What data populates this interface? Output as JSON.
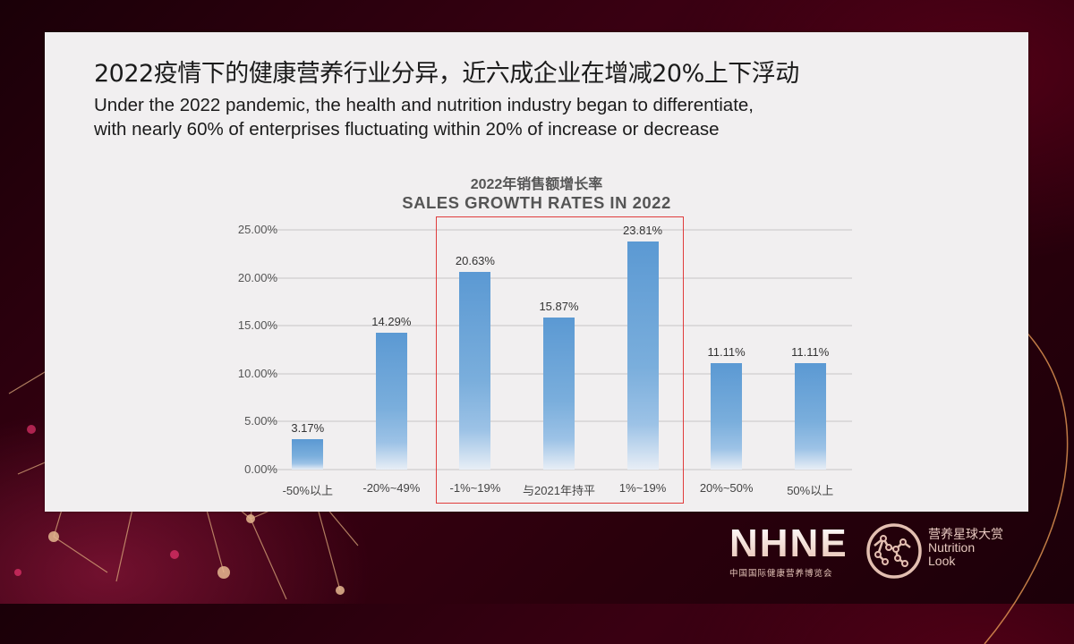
{
  "slide": {
    "title_cn": "2022疫情下的健康营养行业分异，近六成企业在增减20%上下浮动",
    "title_en_line1": "Under the 2022 pandemic, the health and nutrition industry began to differentiate,",
    "title_en_line2": "with nearly 60% of enterprises fluctuating within 20% of increase or decrease"
  },
  "chart_data": {
    "type": "bar",
    "title": "2022年销售额增长率",
    "subtitle": "SALES GROWTH RATES IN 2022",
    "categories": [
      "-50%以上",
      "-20%~49%",
      "-1%~19%",
      "与2021年持平",
      "1%~19%",
      "20%~50%",
      "50%以上"
    ],
    "values": [
      3.17,
      14.29,
      20.63,
      15.87,
      23.81,
      11.11,
      11.11
    ],
    "value_labels": [
      "3.17%",
      "14.29%",
      "20.63%",
      "15.87%",
      "23.81%",
      "11.11%",
      "11.11%"
    ],
    "xlabel": "",
    "ylabel": "",
    "ylim": [
      0,
      25
    ],
    "yticks": [
      "0.00%",
      "5.00%",
      "10.00%",
      "15.00%",
      "20.00%",
      "25.00%"
    ],
    "grid": true,
    "legend": "none",
    "highlight": {
      "categories": [
        "-1%~19%",
        "与2021年持平",
        "1%~19%"
      ],
      "color": "#e03c3c"
    },
    "bar_color": "#5b99d3"
  },
  "branding": {
    "nhne_logo": "NHNE",
    "nhne_subtitle": "中国国际健康营养博览会",
    "nutrition_look_cn": "营养星球大赏",
    "nutrition_look_en1": "Nutrition",
    "nutrition_look_en2": "Look"
  }
}
